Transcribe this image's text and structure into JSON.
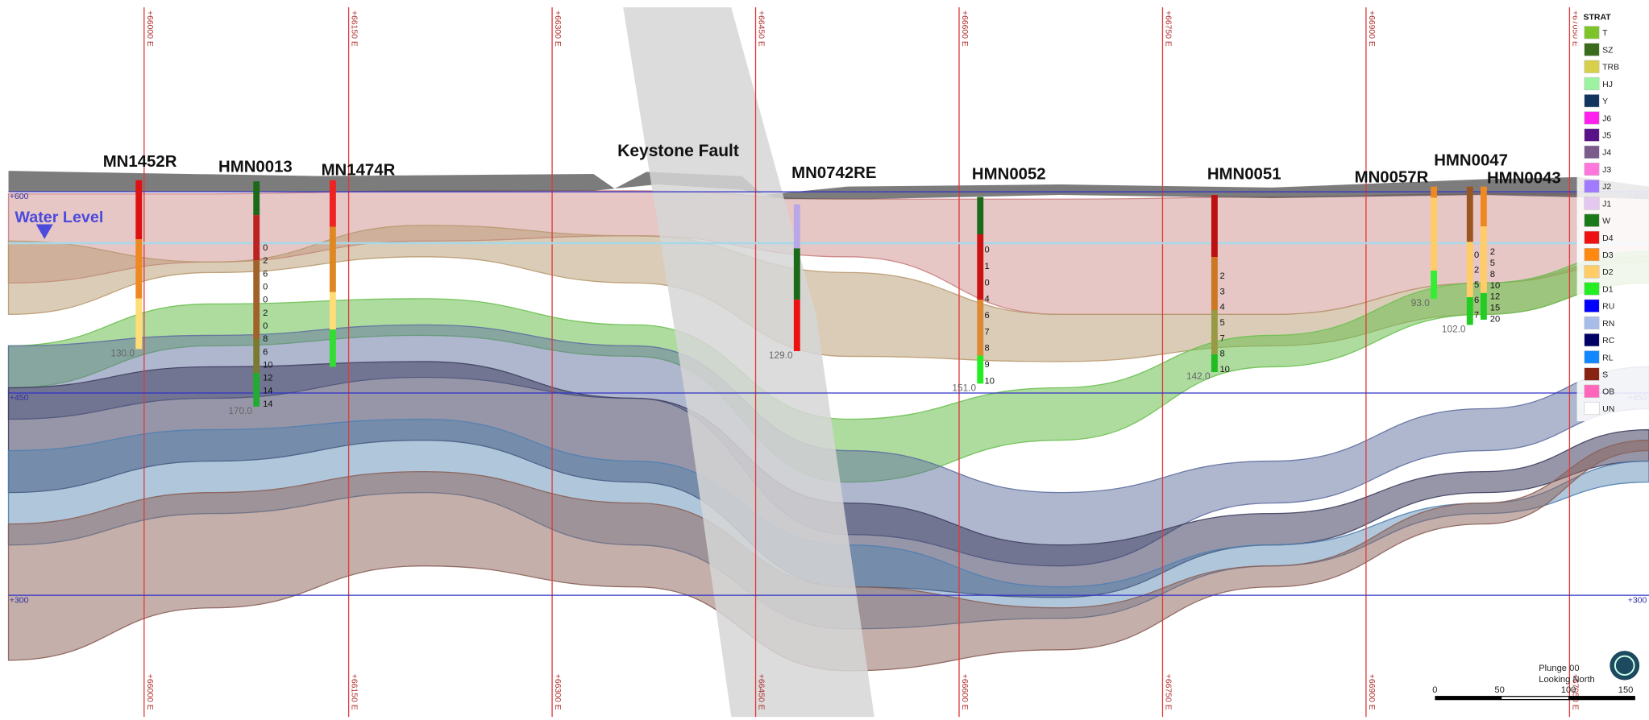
{
  "eastings": [
    "+66000 E",
    "+66150 E",
    "+66300 E",
    "+66450 E",
    "+66600 E",
    "+66750 E",
    "+66900 E",
    "+67050 E"
  ],
  "elevations": [
    "+600",
    "+450",
    "+300"
  ],
  "annotations": {
    "water_level": "Water Level",
    "fault": "Keystone Fault"
  },
  "drillholes": [
    {
      "name": "MN1452R",
      "depth": "130.0"
    },
    {
      "name": "HMN0013",
      "depth": "170.0",
      "intervals": [
        "0",
        "2",
        "6",
        "0",
        "0",
        "2",
        "0",
        "8",
        "6",
        "10",
        "12",
        "14",
        "14"
      ]
    },
    {
      "name": "MN1474R"
    },
    {
      "name": "MN0742RE",
      "depth": "129.0"
    },
    {
      "name": "HMN0052",
      "depth": "151.0",
      "intervals": [
        "0",
        "1",
        "0",
        "4",
        "6",
        "7",
        "8",
        "9",
        "10"
      ]
    },
    {
      "name": "HMN0051",
      "depth": "142.0",
      "intervals": [
        "2",
        "3",
        "4",
        "5",
        "7",
        "8",
        "10"
      ]
    },
    {
      "name": "MN0057R",
      "depth": "93.0"
    },
    {
      "name": "HMN0047",
      "depth": "102.0",
      "intervals": [
        "0",
        "2",
        "5",
        "6",
        "7"
      ]
    },
    {
      "name": "HMN0043",
      "intervals": [
        "2",
        "5",
        "8",
        "10",
        "12",
        "15",
        "20"
      ]
    }
  ],
  "legend": {
    "title": "STRAT",
    "items": [
      {
        "label": "T",
        "color": "#7dc42a"
      },
      {
        "label": "SZ",
        "color": "#3a6b1c"
      },
      {
        "label": "TRB",
        "color": "#d7d04a"
      },
      {
        "label": "HJ",
        "color": "#9cf3a0"
      },
      {
        "label": "Y",
        "color": "#12345e"
      },
      {
        "label": "J6",
        "color": "#ff22ee"
      },
      {
        "label": "J5",
        "color": "#5a1289"
      },
      {
        "label": "J4",
        "color": "#7a5b8c"
      },
      {
        "label": "J3",
        "color": "#ff77dd"
      },
      {
        "label": "J2",
        "color": "#a07aff"
      },
      {
        "label": "J1",
        "color": "#e4c8f0"
      },
      {
        "label": "W",
        "color": "#1a7a1a"
      },
      {
        "label": "D4",
        "color": "#ee1111"
      },
      {
        "label": "D3",
        "color": "#ff8811"
      },
      {
        "label": "D2",
        "color": "#ffcc66"
      },
      {
        "label": "D1",
        "color": "#22ee22"
      },
      {
        "label": "RU",
        "color": "#0000ff"
      },
      {
        "label": "RN",
        "color": "#a8bce8"
      },
      {
        "label": "RC",
        "color": "#000066"
      },
      {
        "label": "RL",
        "color": "#1188ff"
      },
      {
        "label": "S",
        "color": "#882211"
      },
      {
        "label": "OB",
        "color": "#ff66bb"
      },
      {
        "label": "UN",
        "color": "#ffffff"
      }
    ]
  },
  "view": {
    "plunge": "Plunge 00",
    "direction": "Looking North"
  },
  "scale_bar": [
    "0",
    "50",
    "100",
    "150"
  ]
}
